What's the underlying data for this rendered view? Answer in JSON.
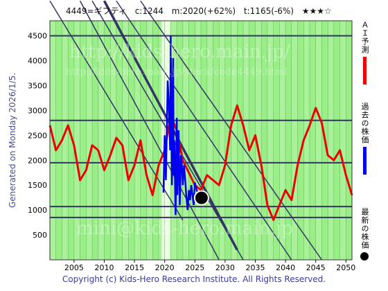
{
  "header": {
    "code": "4449=ギフティ",
    "current": "c:1244",
    "max": "m:2020(+62%)",
    "target": "t:1165(-6%)",
    "rating": "★★★☆"
  },
  "generated": "Generated on Monday 2026/1/5.",
  "copyright": "Copyright (c) Kids-Hero Research Institute. All Rights Reserved.",
  "watermarks": [
    "http://kids-hero.main.jp/",
    "http://kids-hero.main.jp/stock/code4449.html",
    "mini@kids-hero.main.jp"
  ],
  "legend": {
    "forecast": "ＡＩ予測",
    "past": "過去の株価",
    "latest": "最新の株価"
  },
  "colors": {
    "forecast": "#ee0000",
    "past": "#0000ee",
    "latest": "#000000",
    "bg": "#99ee88",
    "trend": "#333366"
  },
  "chart_data": {
    "type": "line",
    "xlim": [
      2001,
      2051
    ],
    "ylim": [
      0,
      4800
    ],
    "x_ticks": [
      2005,
      2010,
      2015,
      2020,
      2025,
      2030,
      2035,
      2040,
      2045,
      2050
    ],
    "y_ticks": [
      500,
      1000,
      1500,
      2000,
      2500,
      3000,
      3500,
      4000,
      4500
    ],
    "horizontal_lines": [
      4500,
      2800,
      1950,
      1070,
      850
    ],
    "latest_point": {
      "x": 2026.1,
      "y": 1244
    },
    "series": [
      {
        "name": "過去の株価",
        "x": [
          2019.8,
          2020.0,
          2020.2,
          2020.4,
          2020.5,
          2020.7,
          2020.9,
          2021.0,
          2021.1,
          2021.2,
          2021.4,
          2021.5,
          2021.6,
          2021.8,
          2022.0,
          2022.1,
          2022.3,
          2022.5,
          2022.7,
          2022.9,
          2023.0,
          2023.2,
          2023.4,
          2023.6,
          2023.8,
          2024.0,
          2024.2,
          2024.4,
          2024.6,
          2024.8,
          2025.0,
          2025.3,
          2025.6,
          2025.9,
          2026.1
        ],
        "y": [
          1350,
          2500,
          1600,
          2900,
          3600,
          3100,
          2200,
          4500,
          3000,
          1500,
          4050,
          1700,
          2400,
          900,
          2850,
          1300,
          2600,
          1100,
          2100,
          1800,
          1500,
          1900,
          1600,
          1250,
          1000,
          1400,
          1200,
          1500,
          1300,
          1100,
          1550,
          1400,
          1300,
          1200,
          1244
        ]
      },
      {
        "name": "ＡＩ予測",
        "x": [
          2001,
          2002,
          2003,
          2004,
          2005,
          2006,
          2007,
          2008,
          2009,
          2010,
          2011,
          2012,
          2013,
          2014,
          2015,
          2016,
          2017,
          2018,
          2019,
          2020,
          2021,
          2022,
          2023,
          2024,
          2025,
          2026,
          2027,
          2028,
          2029,
          2030,
          2031,
          2032,
          2033,
          2034,
          2035,
          2036,
          2037,
          2038,
          2039,
          2040,
          2041,
          2042,
          2043,
          2044,
          2045,
          2046,
          2047,
          2048,
          2049,
          2050,
          2051
        ],
        "y": [
          2700,
          2200,
          2400,
          2700,
          2300,
          1600,
          1800,
          2300,
          2200,
          1800,
          2100,
          2450,
          2300,
          1600,
          1900,
          2400,
          1700,
          1300,
          1900,
          2200,
          2900,
          2600,
          2000,
          1750,
          1500,
          1400,
          1700,
          1600,
          1500,
          1900,
          2700,
          3100,
          2700,
          2200,
          2500,
          1900,
          1100,
          800,
          1100,
          1400,
          1200,
          1900,
          2400,
          2700,
          3050,
          2750,
          2100,
          2000,
          2200,
          1700,
          1300
        ]
      }
    ]
  }
}
